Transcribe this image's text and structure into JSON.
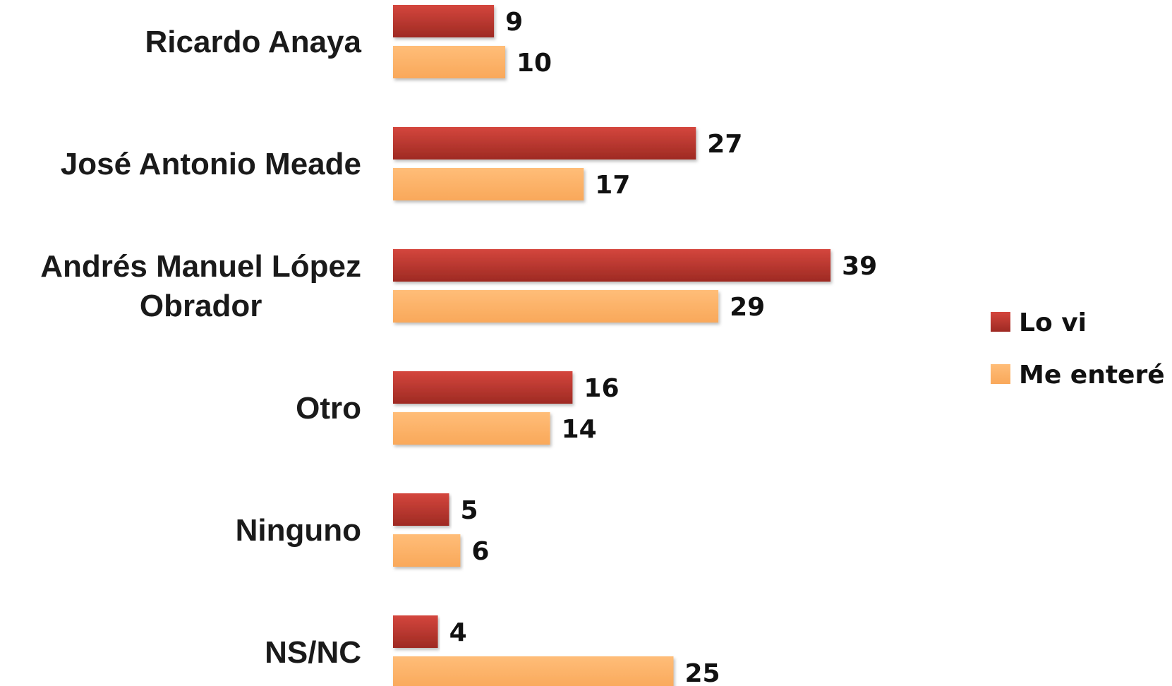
{
  "chart_data": {
    "type": "bar",
    "orientation": "horizontal",
    "title": "",
    "xlabel": "",
    "ylabel": "",
    "categories": [
      [
        "Ricardo Anaya"
      ],
      [
        "José Antonio Meade"
      ],
      [
        "Andrés Manuel López",
        "Obrador"
      ],
      [
        "Otro"
      ],
      [
        "Ninguno"
      ],
      [
        "NS/NC"
      ]
    ],
    "series": [
      {
        "name": "Lo vi",
        "color": "#C0392B",
        "values": [
          9,
          27,
          39,
          16,
          5,
          4
        ]
      },
      {
        "name": "Me enteré",
        "color": "#FDB36B",
        "values": [
          10,
          17,
          29,
          14,
          6,
          25
        ]
      }
    ],
    "xlim": [
      0,
      40
    ],
    "grid": false,
    "data_labels": true,
    "legend_position": "right"
  }
}
